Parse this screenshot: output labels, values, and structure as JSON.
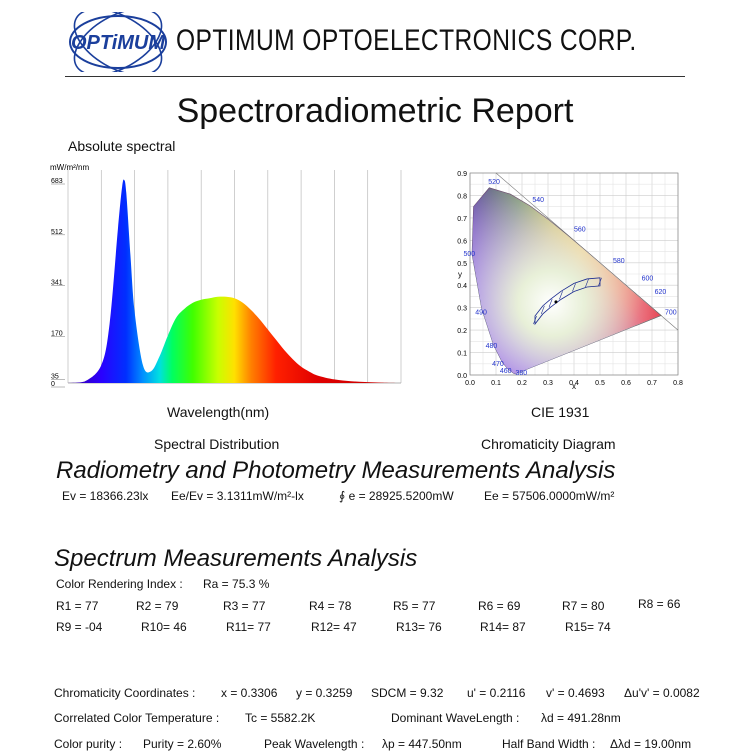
{
  "header": {
    "logo_text": "OPTiMUM",
    "company": "OPTIMUM OPTOELECTRONICS CORP."
  },
  "report_title": "Spectroradiometric Report",
  "spectral_chart": {
    "caption_top": "Absolute spectral",
    "unit": "mW/m²/nm",
    "xlabel": "Wavelength(nm)",
    "subtitle": "Spectral Distribution"
  },
  "cie_chart": {
    "xlabel": "CIE 1931",
    "subtitle": "Chromaticity Diagram",
    "x_axis_letter": "x",
    "y_axis_letter": "y"
  },
  "chart_data": [
    {
      "type": "area",
      "yticks": [
        "683",
        "512",
        "341",
        "170",
        "35",
        "0"
      ],
      "ytick_values": [
        683,
        512,
        341,
        170,
        35,
        0
      ],
      "ylim": [
        0,
        683
      ],
      "x": [
        380,
        400,
        420,
        430,
        440,
        445,
        447.5,
        450,
        455,
        460,
        470,
        480,
        490,
        500,
        510,
        520,
        530,
        540,
        550,
        560,
        570,
        580,
        590,
        600,
        610,
        620,
        630,
        640,
        650,
        660,
        670,
        680,
        700,
        720,
        740,
        760,
        780
      ],
      "values": [
        0,
        5,
        60,
        200,
        520,
        660,
        683,
        640,
        430,
        240,
        60,
        40,
        90,
        160,
        220,
        250,
        270,
        280,
        285,
        290,
        290,
        285,
        270,
        245,
        215,
        180,
        145,
        110,
        80,
        55,
        38,
        25,
        12,
        6,
        3,
        1,
        0
      ],
      "grid": true
    },
    {
      "type": "scatter",
      "xticks": [
        "0.0",
        "0.1",
        "0.2",
        "0.3",
        "0.4",
        "0.5",
        "0.6",
        "0.7",
        "0.8"
      ],
      "yticks": [
        "0.0",
        "0.1",
        "0.2",
        "0.3",
        "0.4",
        "0.5",
        "0.6",
        "0.7",
        "0.8",
        "0.9"
      ],
      "xlim": [
        0,
        0.8
      ],
      "ylim": [
        0,
        0.9
      ],
      "wavelength_labels": [
        "380",
        "460",
        "470",
        "480",
        "490",
        "500",
        "520",
        "540",
        "560",
        "580",
        "600",
        "620",
        "700"
      ],
      "measured_point": [
        0.3306,
        0.3259
      ]
    }
  ],
  "radiometry": {
    "title": "Radiometry and Photometry Measurements Analysis",
    "ev": "Ev = 18366.23lx",
    "ee_ev": "Ee/Ev = 3.1311mW/m²-lx",
    "phi_e": "∮ e = 28925.5200mW",
    "ee": "Ee = 57506.0000mW/m²"
  },
  "spectrum": {
    "title": "Spectrum Measurements Analysis",
    "cri_label": "Color Rendering Index :",
    "ra": "Ra = 75.3 %",
    "r_row1": [
      "R1 = 77",
      "R2 = 79",
      "R3 = 77",
      "R4 = 78",
      "R5 = 77",
      "R6 = 69",
      "R7 = 80",
      "R8 = 66"
    ],
    "r_row2": [
      "R9 = -04",
      "R10= 46",
      "R11= 77",
      "R12= 47",
      "R13= 76",
      "R14= 87",
      "R15= 74"
    ]
  },
  "chromaticity": {
    "label": "Chromaticity Coordinates :",
    "x": "x = 0.3306",
    "y": "y = 0.3259",
    "sdcm": "SDCM = 9.32",
    "u": "u' = 0.2116",
    "v": "v' = 0.4693",
    "duv": "Δu'v' = 0.0082"
  },
  "cct": {
    "label": "Correlated Color Temperature :",
    "tc": "Tc = 5582.2K",
    "dom_label": "Dominant WaveLength :",
    "dom": "λd = 491.28nm"
  },
  "purity": {
    "label": "Color purity :",
    "purity": "Purity = 2.60%",
    "peak_label": "Peak Wavelength :",
    "peak": "λp = 447.50nm",
    "hbw_label": "Half Band Width :",
    "hbw": "Δλd = 19.00nm"
  },
  "colors": {
    "logo_blue": "#1b3f9c",
    "logo_dark": "#0d2a6e",
    "cie_label_blue": "#2233cc"
  }
}
